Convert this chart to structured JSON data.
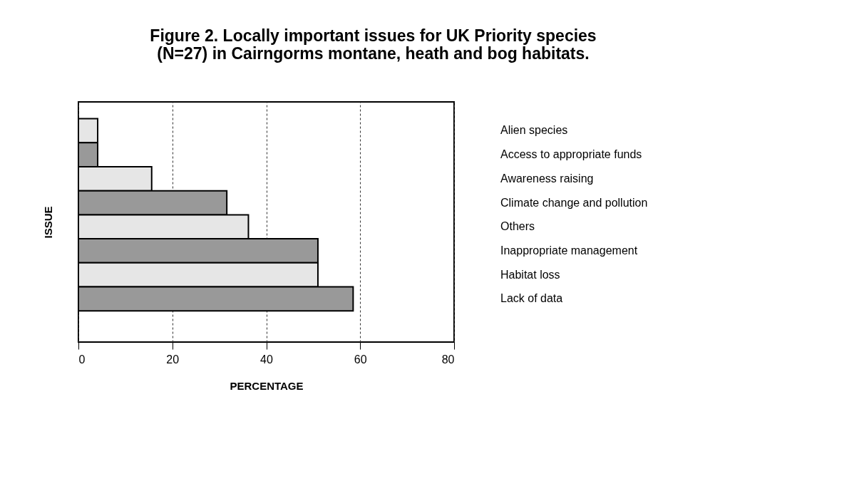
{
  "chart_data": {
    "type": "bar",
    "orientation": "horizontal",
    "title": [
      "Figure 2. Locally important issues for UK Priority species",
      "(N=27) in Cairngorms montane, heath and bog habitats."
    ],
    "xlabel": "PERCENTAGE",
    "ylabel": "ISSUE",
    "categories": [
      "Alien species",
      "Access to appropriate funds",
      "Awareness raising",
      "Climate change and pollution",
      "Others",
      "Inappropriate management",
      "Habitat loss",
      "Lack of data"
    ],
    "values": [
      4.1,
      4.1,
      15.6,
      31.6,
      36.2,
      51.0,
      51.0,
      58.5
    ],
    "colors": [
      "#e6e6e6",
      "#999999",
      "#e6e6e6",
      "#999999",
      "#e6e6e6",
      "#999999",
      "#e6e6e6",
      "#999999"
    ],
    "xlim": [
      0,
      80
    ],
    "xticks": [
      0,
      20,
      40,
      60,
      80
    ],
    "grid": "x"
  }
}
